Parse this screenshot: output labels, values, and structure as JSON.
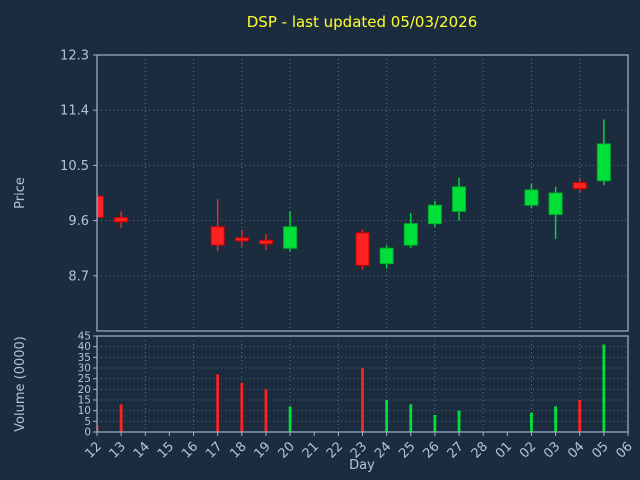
{
  "chart_data": {
    "type": "candlestick",
    "title": "DSP - last updated 05/03/2026",
    "xlabel": "Day",
    "price_ylabel": "Price",
    "volume_ylabel": "Volume (0000)",
    "price_ticks": [
      12.3,
      11.4,
      10.5,
      9.6,
      8.7
    ],
    "price_ylim": [
      7.8,
      12.3
    ],
    "volume_ticks": [
      45,
      40,
      35,
      30,
      25,
      20,
      15,
      10,
      5,
      0
    ],
    "volume_ylim": [
      0,
      45
    ],
    "x_ticks": [
      "12",
      "13",
      "14",
      "15",
      "16",
      "17",
      "18",
      "19",
      "20",
      "21",
      "22",
      "23",
      "24",
      "25",
      "26",
      "27",
      "28",
      "01",
      "02",
      "03",
      "04",
      "05",
      "06"
    ],
    "grid": "dotted, vertical every 2 days, horizontal at ticks",
    "legend": "none",
    "candles": [
      {
        "day": "12",
        "open": 10.0,
        "high": 10.05,
        "low": 9.6,
        "close": 9.65,
        "volume": 3
      },
      {
        "day": "13",
        "open": 9.65,
        "high": 9.75,
        "low": 9.48,
        "close": 9.58,
        "volume": 13
      },
      {
        "day": "17",
        "open": 9.5,
        "high": 9.95,
        "low": 9.1,
        "close": 9.2,
        "volume": 27
      },
      {
        "day": "18",
        "open": 9.32,
        "high": 9.45,
        "low": 9.18,
        "close": 9.27,
        "volume": 23
      },
      {
        "day": "19",
        "open": 9.28,
        "high": 9.38,
        "low": 9.12,
        "close": 9.22,
        "volume": 20
      },
      {
        "day": "20",
        "open": 9.15,
        "high": 9.75,
        "low": 9.1,
        "close": 9.5,
        "volume": 12
      },
      {
        "day": "23",
        "open": 9.4,
        "high": 9.45,
        "low": 8.8,
        "close": 8.87,
        "volume": 30
      },
      {
        "day": "24",
        "open": 8.9,
        "high": 9.2,
        "low": 8.82,
        "close": 9.15,
        "volume": 15
      },
      {
        "day": "25",
        "open": 9.2,
        "high": 9.72,
        "low": 9.15,
        "close": 9.55,
        "volume": 13
      },
      {
        "day": "26",
        "open": 9.55,
        "high": 9.92,
        "low": 9.5,
        "close": 9.85,
        "volume": 8
      },
      {
        "day": "27",
        "open": 9.75,
        "high": 10.3,
        "low": 9.6,
        "close": 10.15,
        "volume": 10
      },
      {
        "day": "02",
        "open": 9.85,
        "high": 10.2,
        "low": 9.8,
        "close": 10.1,
        "volume": 9
      },
      {
        "day": "03",
        "open": 9.7,
        "high": 10.15,
        "low": 9.3,
        "close": 10.05,
        "volume": 12
      },
      {
        "day": "04",
        "open": 10.22,
        "high": 10.3,
        "low": 10.05,
        "close": 10.12,
        "volume": 15
      },
      {
        "day": "05",
        "open": 10.25,
        "high": 11.25,
        "low": 10.18,
        "close": 10.85,
        "volume": 41
      }
    ],
    "colors": {
      "background": "#1c2c3f",
      "title": "#ffff2e",
      "axis_text": "#b0c4de",
      "frame": "#9fb4cb",
      "grid": "#56708e",
      "up_candle": "#00e038",
      "down_candle": "#ff2222"
    }
  }
}
